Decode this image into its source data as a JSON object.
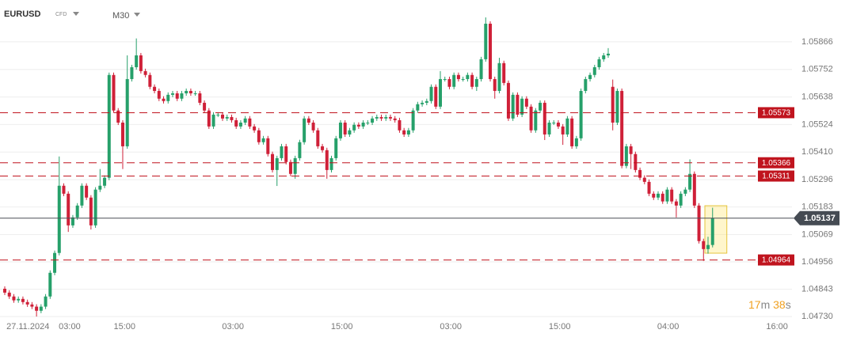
{
  "header": {
    "symbol": "EURUSD",
    "instrument": "CFD",
    "timeframe": "M30"
  },
  "chart_data": {
    "type": "candlestick",
    "open": [
      1.04845,
      1.04829,
      1.04813,
      1.04797,
      1.04803,
      1.0479,
      1.0478,
      1.04771,
      1.04754,
      1.04771,
      1.04813,
      1.04911,
      1.04993,
      1.05271,
      1.05238,
      1.05107,
      1.0514,
      1.05189,
      1.05271,
      1.05222,
      1.05107,
      1.05255,
      1.05271,
      1.05304,
      1.05729,
      1.05582,
      1.05532,
      1.05434,
      1.05712,
      1.05761,
      1.0581,
      1.05745,
      1.05729,
      1.0568,
      1.05663,
      1.05631,
      1.05621,
      1.05647,
      1.05653,
      1.05631,
      1.05653,
      1.05663,
      1.05653,
      1.05653,
      1.05614,
      1.05582,
      1.05516,
      1.05565,
      1.05565,
      1.05549,
      1.05555,
      1.05542,
      1.05516,
      1.05532,
      1.05549,
      1.05516,
      1.055,
      1.05451,
      1.05467,
      1.05402,
      1.05336,
      1.05385,
      1.05434,
      1.05369,
      1.0532,
      1.05385,
      1.05451,
      1.05549,
      1.05532,
      1.055,
      1.05434,
      1.05418,
      1.05336,
      1.05385,
      1.05467,
      1.05532,
      1.05483,
      1.055,
      1.05523,
      1.05516,
      1.05532,
      1.05532,
      1.05549,
      1.05555,
      1.05549,
      1.05555,
      1.05549,
      1.05542,
      1.055,
      1.05483,
      1.055,
      1.05582,
      1.05608,
      1.05614,
      1.05621,
      1.0568,
      1.05598,
      1.05712,
      1.05712,
      1.0568,
      1.05729,
      1.05712,
      1.05712,
      1.05729,
      1.0568,
      1.05712,
      1.05794,
      1.05941,
      1.05712,
      1.05663,
      1.05778,
      1.05696,
      1.05549,
      1.05647,
      1.05565,
      1.05631,
      1.05598,
      1.055,
      1.05582,
      1.05614,
      1.05483,
      1.05532,
      1.05532,
      1.05516,
      1.05483,
      1.05549,
      1.05434,
      1.05467,
      1.05663,
      1.05712,
      1.05729,
      1.05761,
      1.05794,
      1.0581,
      1.0568,
      1.05532,
      1.05663,
      1.05353,
      1.05434,
      1.05402,
      1.05336,
      1.05304,
      1.05287,
      1.05238,
      1.05222,
      1.05238,
      1.05206,
      1.05255,
      1.05206,
      1.05189,
      1.05238,
      1.05255,
      1.0532,
      1.05189,
      1.05042,
      1.05009,
      1.05026
    ],
    "high": [
      1.04855,
      1.04839,
      1.04823,
      1.04813,
      1.04813,
      1.048,
      1.0479,
      1.04781,
      1.04781,
      1.04823,
      1.04921,
      1.05003,
      1.05392,
      1.05281,
      1.05248,
      1.0515,
      1.05199,
      1.05281,
      1.05281,
      1.05232,
      1.05265,
      1.0534,
      1.05314,
      1.05739,
      1.05739,
      1.05592,
      1.05542,
      1.0581,
      1.05771,
      1.0588,
      1.0582,
      1.05755,
      1.05739,
      1.0569,
      1.05673,
      1.05641,
      1.05657,
      1.05663,
      1.05663,
      1.05663,
      1.05673,
      1.05673,
      1.05663,
      1.05663,
      1.05624,
      1.05592,
      1.05575,
      1.05575,
      1.05575,
      1.05565,
      1.05565,
      1.05552,
      1.05542,
      1.05559,
      1.05559,
      1.05526,
      1.0551,
      1.05477,
      1.05477,
      1.05412,
      1.05395,
      1.05444,
      1.05444,
      1.05379,
      1.05395,
      1.05461,
      1.05559,
      1.05559,
      1.05542,
      1.0551,
      1.05444,
      1.05428,
      1.05395,
      1.05477,
      1.05542,
      1.05542,
      1.0551,
      1.05533,
      1.05533,
      1.05542,
      1.05542,
      1.05559,
      1.05565,
      1.05565,
      1.05565,
      1.05565,
      1.05559,
      1.05552,
      1.0551,
      1.0551,
      1.05592,
      1.05618,
      1.05624,
      1.05631,
      1.0569,
      1.0569,
      1.05745,
      1.05722,
      1.05722,
      1.05739,
      1.05739,
      1.05722,
      1.05739,
      1.05739,
      1.05722,
      1.05804,
      1.05967,
      1.05951,
      1.05722,
      1.058,
      1.05788,
      1.05706,
      1.05657,
      1.05657,
      1.05641,
      1.05641,
      1.05608,
      1.05592,
      1.05624,
      1.05624,
      1.05542,
      1.05542,
      1.05542,
      1.05526,
      1.05559,
      1.05559,
      1.05477,
      1.05673,
      1.05722,
      1.05739,
      1.05771,
      1.05804,
      1.0582,
      1.0584,
      1.0571,
      1.05673,
      1.05673,
      1.05444,
      1.05444,
      1.05412,
      1.05346,
      1.05314,
      1.05297,
      1.05248,
      1.05248,
      1.05248,
      1.05265,
      1.05265,
      1.05216,
      1.05248,
      1.05265,
      1.0538,
      1.0533,
      1.05199,
      1.05052,
      1.0506,
      1.0518
    ],
    "low": [
      1.04819,
      1.04803,
      1.04787,
      1.04787,
      1.0478,
      1.0477,
      1.04761,
      1.0473,
      1.04744,
      1.04761,
      1.04803,
      1.04901,
      1.04983,
      1.05228,
      1.0508,
      1.05097,
      1.0513,
      1.05179,
      1.05212,
      1.0509,
      1.05097,
      1.05245,
      1.05261,
      1.05294,
      1.05572,
      1.05522,
      1.0534,
      1.05424,
      1.05702,
      1.05751,
      1.05735,
      1.05719,
      1.0567,
      1.05653,
      1.05621,
      1.05611,
      1.05611,
      1.05637,
      1.05621,
      1.05621,
      1.05643,
      1.05643,
      1.05643,
      1.05604,
      1.05572,
      1.05506,
      1.05506,
      1.05555,
      1.05539,
      1.05539,
      1.05532,
      1.05506,
      1.05506,
      1.05522,
      1.05506,
      1.0549,
      1.05441,
      1.05441,
      1.05392,
      1.05326,
      1.0527,
      1.05375,
      1.05359,
      1.0531,
      1.053,
      1.05375,
      1.05441,
      1.05522,
      1.0549,
      1.05424,
      1.05408,
      1.053,
      1.05326,
      1.05375,
      1.05457,
      1.05473,
      1.05473,
      1.0549,
      1.05506,
      1.05506,
      1.05522,
      1.05522,
      1.05539,
      1.05539,
      1.05539,
      1.05539,
      1.05532,
      1.0549,
      1.05473,
      1.05473,
      1.0549,
      1.05572,
      1.05598,
      1.05604,
      1.05611,
      1.05588,
      1.05588,
      1.05702,
      1.0567,
      1.0567,
      1.05702,
      1.05702,
      1.05702,
      1.0567,
      1.05663,
      1.05702,
      1.05784,
      1.05702,
      1.05631,
      1.05653,
      1.05686,
      1.05539,
      1.05539,
      1.05555,
      1.05555,
      1.05588,
      1.0549,
      1.0549,
      1.05572,
      1.0546,
      1.05473,
      1.05522,
      1.05506,
      1.0544,
      1.05473,
      1.05424,
      1.05424,
      1.05457,
      1.05653,
      1.05702,
      1.05719,
      1.05751,
      1.05784,
      1.058,
      1.055,
      1.05522,
      1.05343,
      1.05343,
      1.0534,
      1.05326,
      1.05294,
      1.05277,
      1.05228,
      1.05212,
      1.05212,
      1.05196,
      1.05196,
      1.05196,
      1.0514,
      1.05179,
      1.05228,
      1.05245,
      1.05179,
      1.05032,
      1.0496,
      1.0499,
      1.05016
    ],
    "close": [
      1.04829,
      1.04813,
      1.04797,
      1.04803,
      1.0479,
      1.0478,
      1.04771,
      1.04754,
      1.04771,
      1.04813,
      1.04911,
      1.04993,
      1.05271,
      1.05238,
      1.05107,
      1.0514,
      1.05189,
      1.05271,
      1.05222,
      1.05107,
      1.05255,
      1.05271,
      1.05304,
      1.05729,
      1.05582,
      1.05532,
      1.05434,
      1.05712,
      1.05761,
      1.0581,
      1.05745,
      1.05729,
      1.0568,
      1.05663,
      1.05631,
      1.05621,
      1.05647,
      1.05653,
      1.05631,
      1.05653,
      1.05663,
      1.05653,
      1.05653,
      1.05614,
      1.05582,
      1.05516,
      1.05565,
      1.05565,
      1.05549,
      1.05555,
      1.05542,
      1.05516,
      1.05532,
      1.05549,
      1.05516,
      1.055,
      1.05451,
      1.05467,
      1.05402,
      1.05336,
      1.05385,
      1.05434,
      1.05369,
      1.0532,
      1.05385,
      1.05451,
      1.05549,
      1.05532,
      1.055,
      1.05434,
      1.05418,
      1.05336,
      1.05385,
      1.05467,
      1.05532,
      1.05483,
      1.055,
      1.05523,
      1.05516,
      1.05532,
      1.05532,
      1.05549,
      1.05555,
      1.05549,
      1.05555,
      1.05549,
      1.05542,
      1.055,
      1.05483,
      1.055,
      1.05582,
      1.05608,
      1.05614,
      1.05621,
      1.0568,
      1.05598,
      1.05712,
      1.05712,
      1.0568,
      1.05729,
      1.05712,
      1.05712,
      1.05729,
      1.0568,
      1.05712,
      1.05794,
      1.05941,
      1.05712,
      1.05663,
      1.05778,
      1.05696,
      1.05549,
      1.05647,
      1.05565,
      1.05631,
      1.05598,
      1.055,
      1.05582,
      1.05614,
      1.05483,
      1.05532,
      1.05532,
      1.05516,
      1.05483,
      1.05549,
      1.05434,
      1.05467,
      1.05663,
      1.05712,
      1.05729,
      1.05761,
      1.05794,
      1.0581,
      1.05817,
      1.05532,
      1.05663,
      1.05353,
      1.05434,
      1.05402,
      1.05336,
      1.05304,
      1.05287,
      1.05238,
      1.05222,
      1.05238,
      1.05206,
      1.05255,
      1.05206,
      1.05189,
      1.05238,
      1.05255,
      1.0532,
      1.05189,
      1.05042,
      1.05009,
      1.05026,
      1.05137
    ],
    "up_color": "#26a06a",
    "down_color": "#cf2038",
    "ylim": [
      1.04714,
      1.06039
    ],
    "yticks": [
      1.05866,
      1.05752,
      1.05638,
      1.05524,
      {
        "value": 1.0541,
        "label": "1.05410"
      },
      1.05296,
      1.05183,
      1.05069,
      1.04956,
      1.04843,
      {
        "value": 1.0473,
        "label": "1.04730"
      }
    ],
    "xlim": [
      -1.05,
      173.5
    ],
    "xticks": [
      {
        "value": 5.1,
        "label": "27.11.2024"
      },
      {
        "value": 14.3,
        "label": "03:00"
      },
      {
        "value": 26.4,
        "label": "15:00"
      },
      {
        "value": 50.3,
        "label": "03:00"
      },
      {
        "value": 74.3,
        "label": "15:00"
      },
      {
        "value": 98.3,
        "label": "03:00"
      },
      {
        "value": 122.3,
        "label": "15:00"
      },
      {
        "value": 146.2,
        "label": "04:00"
      },
      {
        "value": 170.2,
        "label": "16:00"
      }
    ],
    "grid": true,
    "levels": [
      1.05573,
      1.05366,
      1.05311,
      1.04964
    ],
    "level_color": "#c0141e",
    "current_price": 1.05137
  },
  "timer": {
    "minutes": "17",
    "minutes_unit": "m",
    "seconds": "38",
    "seconds_unit": "s"
  }
}
